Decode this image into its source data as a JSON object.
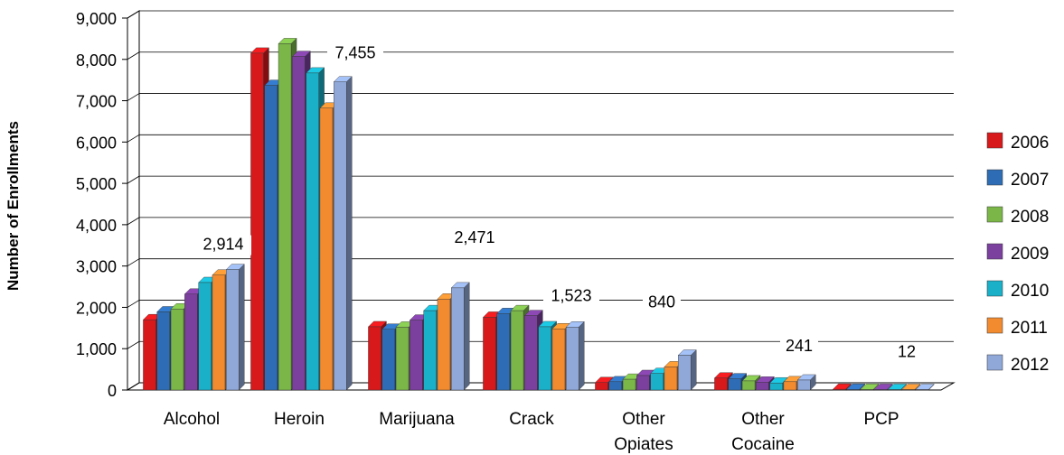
{
  "chart_data": {
    "type": "bar",
    "title": "",
    "xlabel": "",
    "ylabel": "Number of Enrollments",
    "ylim": [
      0,
      9000
    ],
    "yticks": [
      0,
      1000,
      2000,
      3000,
      4000,
      5000,
      6000,
      7000,
      8000,
      9000
    ],
    "ytick_labels": [
      "0",
      "1,000",
      "2,000",
      "3,000",
      "4,000",
      "5,000",
      "6,000",
      "7,000",
      "8,000",
      "9,000"
    ],
    "categories": [
      [
        "Alcohol"
      ],
      [
        "Heroin"
      ],
      [
        "Marijuana"
      ],
      [
        "Crack"
      ],
      [
        "Other",
        "Opiates"
      ],
      [
        "Other",
        "Cocaine"
      ],
      [
        "PCP"
      ]
    ],
    "grid": true,
    "legend_position": "right",
    "series": [
      {
        "name": "2006",
        "color": "#d7191c",
        "values": [
          1700,
          8150,
          1530,
          1760,
          180,
          290,
          18
        ]
      },
      {
        "name": "2007",
        "color": "#2e6db5",
        "values": [
          1890,
          7370,
          1470,
          1850,
          200,
          270,
          16
        ]
      },
      {
        "name": "2008",
        "color": "#7ab648",
        "values": [
          1960,
          8380,
          1520,
          1920,
          260,
          220,
          15
        ]
      },
      {
        "name": "2009",
        "color": "#7b3f9e",
        "values": [
          2320,
          8070,
          1690,
          1800,
          350,
          190,
          14
        ]
      },
      {
        "name": "2010",
        "color": "#19b0c8",
        "values": [
          2600,
          7670,
          1920,
          1530,
          400,
          170,
          13
        ]
      },
      {
        "name": "2011",
        "color": "#f28a30",
        "values": [
          2780,
          6820,
          2200,
          1480,
          560,
          200,
          12
        ]
      },
      {
        "name": "2012",
        "color": "#8fa8d8",
        "values": [
          2914,
          7455,
          2471,
          1523,
          840,
          241,
          12
        ]
      }
    ],
    "data_labels": [
      "2,914",
      "7,455",
      "2,471",
      "1,523",
      "840",
      "241",
      "12"
    ]
  }
}
